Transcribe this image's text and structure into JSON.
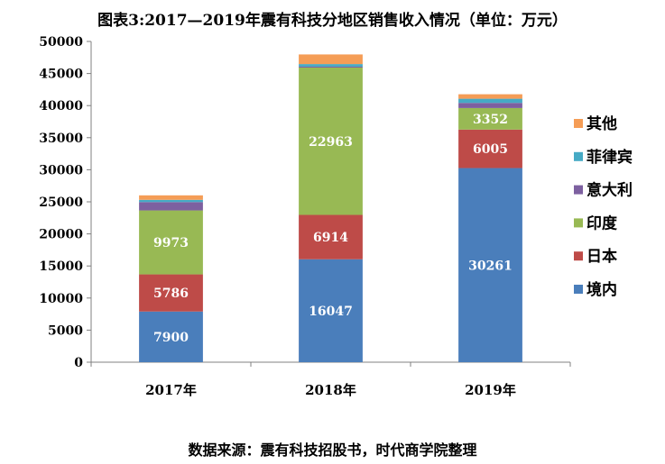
{
  "title": "图表3:2017—2019年震有科技分地区销售收入情况（单位：万元）",
  "source": "数据来源：震有科技招股书，时代商学院整理",
  "chart_data": {
    "type": "bar",
    "stacked": true,
    "categories": [
      "2017年",
      "2018年",
      "2019年"
    ],
    "ylim": [
      0,
      50000
    ],
    "yticks": [
      0,
      5000,
      10000,
      15000,
      20000,
      25000,
      30000,
      35000,
      40000,
      45000,
      50000
    ],
    "legend_position": "right",
    "series": [
      {
        "name": "境内",
        "color": "#4A7EBB",
        "values": [
          7900,
          16047,
          30261
        ],
        "labels": [
          "7900",
          "16047",
          "30261"
        ]
      },
      {
        "name": "日本",
        "color": "#BE4B48",
        "values": [
          5786,
          6914,
          6005
        ],
        "labels": [
          "5786",
          "6914",
          "6005"
        ]
      },
      {
        "name": "印度",
        "color": "#98B954",
        "values": [
          9973,
          22963,
          3352
        ],
        "labels": [
          "9973",
          "22963",
          "3352"
        ]
      },
      {
        "name": "意大利",
        "color": "#7D60A0",
        "values": [
          1300,
          150,
          800
        ],
        "labels": [
          "",
          "",
          ""
        ]
      },
      {
        "name": "菲律宾",
        "color": "#46AAC5",
        "values": [
          350,
          400,
          650
        ],
        "labels": [
          "",
          "",
          ""
        ]
      },
      {
        "name": "其他",
        "color": "#F59D56",
        "values": [
          700,
          1500,
          700
        ],
        "labels": [
          "",
          "",
          ""
        ]
      }
    ]
  }
}
